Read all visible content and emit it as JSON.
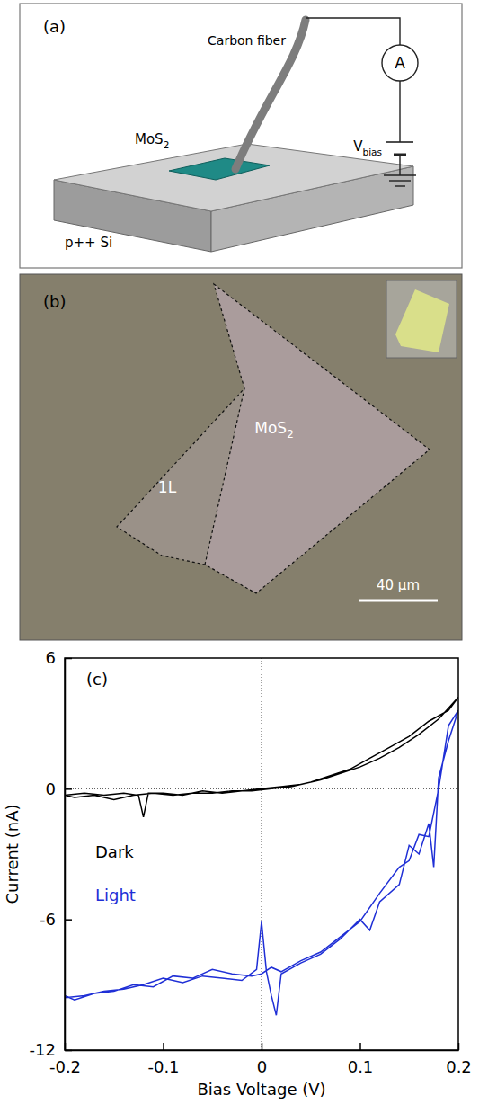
{
  "panels": {
    "a": "(a)",
    "b": "(b)"
  },
  "diagram": {
    "carbon_fiber": "Carbon fiber",
    "ammeter": "A",
    "v_bias": {
      "base": "V",
      "sub": "bias"
    },
    "mos2": {
      "base": "MoS",
      "sub": "2"
    },
    "substrate": "p++ Si"
  },
  "image": {
    "mos2": {
      "base": "MoS",
      "sub": "2"
    },
    "monolayer": "1L",
    "scale_bar": "40 µm"
  },
  "chart_data": {
    "type": "line",
    "annotations": [
      "(c)"
    ],
    "x_label": "Bias Voltage (V)",
    "y_label": "Current (nA)",
    "xlim": [
      -0.2,
      0.2
    ],
    "xticks": [
      -0.2,
      -0.1,
      0,
      0.1,
      0.2
    ],
    "ylim": [
      -12,
      6
    ],
    "yticks": [
      -12,
      -6,
      0,
      6
    ],
    "series": [
      {
        "name": "Dark",
        "color": "#000000",
        "x": [
          -0.2,
          -0.18,
          -0.16,
          -0.14,
          -0.125,
          -0.12,
          -0.115,
          -0.1,
          -0.08,
          -0.06,
          -0.04,
          -0.02,
          0,
          0.02,
          0.04,
          0.06,
          0.08,
          0.1,
          0.12,
          0.14,
          0.16,
          0.18,
          0.2,
          0.19,
          0.17,
          0.15,
          0.13,
          0.11,
          0.09,
          0.07,
          0.05,
          0.03,
          0.01,
          -0.01,
          -0.03,
          -0.05,
          -0.07,
          -0.09,
          -0.11,
          -0.13,
          -0.15,
          -0.17,
          -0.19,
          -0.2
        ],
        "values": [
          -0.3,
          -0.2,
          -0.3,
          -0.2,
          -0.3,
          -1.3,
          -0.2,
          -0.2,
          -0.3,
          -0.1,
          -0.2,
          -0.1,
          0.0,
          0.1,
          0.2,
          0.4,
          0.7,
          1.0,
          1.4,
          1.9,
          2.5,
          3.2,
          4.2,
          3.6,
          3.1,
          2.4,
          1.9,
          1.4,
          0.9,
          0.6,
          0.3,
          0.1,
          0.0,
          -0.1,
          -0.1,
          -0.2,
          -0.2,
          -0.3,
          -0.2,
          -0.3,
          -0.5,
          -0.3,
          -0.4,
          -0.3
        ]
      },
      {
        "name": "Light",
        "color": "#1f2fd6",
        "x": [
          -0.2,
          -0.18,
          -0.16,
          -0.14,
          -0.12,
          -0.1,
          -0.08,
          -0.06,
          -0.04,
          -0.02,
          -0.005,
          0,
          0.005,
          0.01,
          0.015,
          0.02,
          0.04,
          0.06,
          0.08,
          0.1,
          0.11,
          0.12,
          0.14,
          0.15,
          0.16,
          0.17,
          0.175,
          0.18,
          0.19,
          0.2,
          0.19,
          0.18,
          0.17,
          0.16,
          0.15,
          0.14,
          0.12,
          0.1,
          0.08,
          0.06,
          0.04,
          0.02,
          0.01,
          0,
          -0.01,
          -0.03,
          -0.05,
          -0.07,
          -0.09,
          -0.11,
          -0.13,
          -0.15,
          -0.17,
          -0.19,
          -0.2
        ],
        "values": [
          -9.6,
          -9.5,
          -9.3,
          -9.2,
          -9.0,
          -8.7,
          -8.9,
          -8.6,
          -8.7,
          -8.8,
          -8.3,
          -6.1,
          -8.4,
          -9.5,
          -10.4,
          -8.5,
          -8.0,
          -7.6,
          -6.9,
          -6.0,
          -6.5,
          -5.2,
          -4.4,
          -2.6,
          -3.0,
          -1.6,
          -3.6,
          0.5,
          2.2,
          3.6,
          2.9,
          0.0,
          -2.2,
          -2.1,
          -3.3,
          -3.6,
          -4.8,
          -6.1,
          -6.8,
          -7.5,
          -7.9,
          -8.4,
          -8.2,
          -8.5,
          -8.6,
          -8.5,
          -8.3,
          -8.7,
          -8.6,
          -9.1,
          -9.0,
          -9.3,
          -9.4,
          -9.7,
          -9.5
        ]
      }
    ]
  }
}
